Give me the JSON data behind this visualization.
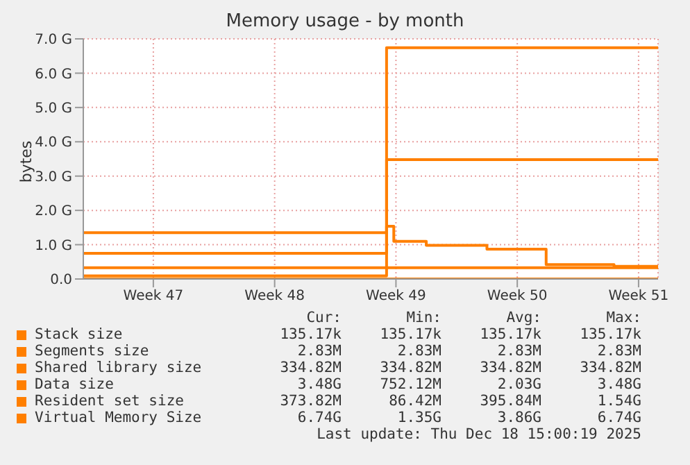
{
  "chart_data": {
    "type": "step",
    "title": "Memory usage - by month",
    "ylabel": "bytes",
    "xlim": [
      "2025-11-15T11:00",
      "2025-12-18T15:00"
    ],
    "xticks": [
      {
        "value": "2025-11-19T12:00",
        "label": "Week 47"
      },
      {
        "value": "2025-11-26T12:00",
        "label": "Week 48"
      },
      {
        "value": "2025-12-03T12:00",
        "label": "Week 49"
      },
      {
        "value": "2025-12-10T12:00",
        "label": "Week 50"
      },
      {
        "value": "2025-12-17T12:00",
        "label": "Week 51"
      }
    ],
    "ylim": [
      0,
      7
    ],
    "yticks": [
      {
        "value": 0,
        "label": "0.0"
      },
      {
        "value": 1,
        "label": "1.0 G"
      },
      {
        "value": 2,
        "label": "2.0 G"
      },
      {
        "value": 3,
        "label": "3.0 G"
      },
      {
        "value": 4,
        "label": "4.0 G"
      },
      {
        "value": 5,
        "label": "5.0 G"
      },
      {
        "value": 6,
        "label": "6.0 G"
      },
      {
        "value": 7,
        "label": "7.0 G"
      }
    ],
    "grid": true,
    "legend": "bottom",
    "line_style": "solid",
    "series": [
      {
        "name": "Stack size",
        "color": "#ff7f00",
        "x": [
          "2025-11-15T11:00",
          "2025-12-18T15:00"
        ],
        "values": [
          0,
          0
        ]
      },
      {
        "name": "Segments size",
        "color": "#ff7f00"
      },
      {
        "name": "Shared library size",
        "color": "#ff7f00",
        "x": [
          "2025-11-15T11:00",
          "2025-12-18T15:00"
        ],
        "values": [
          0.33,
          0.33
        ]
      },
      {
        "name": "Data size",
        "color": "#ff7f00",
        "x": [
          "2025-11-15T11:00",
          "2025-12-02T23:00",
          "2025-12-18T15:00"
        ],
        "values": [
          0.75,
          3.48,
          3.48
        ]
      },
      {
        "name": "Resident set size",
        "color": "#ff7f00",
        "x": [
          "2025-11-15T11:00",
          "2025-12-02T23:00",
          "2025-12-03T09:00",
          "2025-12-05T06:00",
          "2025-12-08T18:00",
          "2025-12-12T04:00",
          "2025-12-16T02:00",
          "2025-12-18T15:00"
        ],
        "values": [
          0.09,
          1.54,
          1.1,
          0.98,
          0.87,
          0.42,
          0.37,
          0.37
        ]
      },
      {
        "name": "Virtual Memory Size",
        "color": "#ff7f00",
        "x": [
          "2025-11-15T11:00",
          "2025-12-02T23:00",
          "2025-12-18T15:00"
        ],
        "values": [
          1.35,
          6.74,
          6.74
        ]
      }
    ],
    "annotations": [
      "Cur:",
      "Min:",
      "Avg:",
      "Max:",
      "135.17k",
      "135.17k",
      "135.17k",
      "135.17k",
      "2.83M",
      "2.83M",
      "2.83M",
      "2.83M",
      "334.82M",
      "334.82M",
      "334.82M",
      "334.82M",
      "3.48G",
      "752.12M",
      "2.03G",
      "3.48G",
      "373.82M",
      "86.42M",
      "395.84M",
      "1.54G",
      "6.74G",
      "1.35G",
      "3.86G",
      "6.74G",
      "Last update: Thu Dec 18 15:00:19 2025"
    ]
  }
}
